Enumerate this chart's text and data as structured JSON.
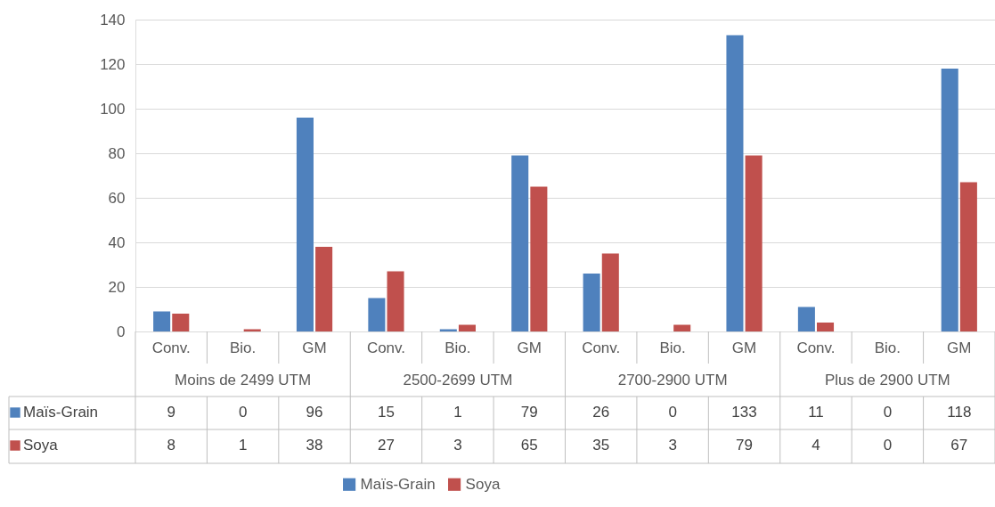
{
  "chart_data": {
    "type": "bar",
    "categories": [
      "Conv.",
      "Bio.",
      "GM",
      "Conv.",
      "Bio.",
      "GM",
      "Conv.",
      "Bio.",
      "GM",
      "Conv.",
      "Bio.",
      "GM"
    ],
    "annotations": [
      "Moins de 2499 UTM",
      "2500-2699 UTM",
      "2700-2900 UTM",
      "Plus de 2900 UTM"
    ],
    "series": [
      {
        "name": "Maïs-Grain",
        "color": "#4f81bd",
        "values": [
          9,
          0,
          96,
          15,
          1,
          79,
          26,
          0,
          133,
          11,
          0,
          118
        ]
      },
      {
        "name": "Soya",
        "color": "#c0504d",
        "values": [
          8,
          1,
          38,
          27,
          3,
          65,
          35,
          3,
          79,
          4,
          0,
          67
        ]
      }
    ],
    "ylim": [
      0,
      140
    ],
    "yticks": [
      0,
      20,
      40,
      60,
      80,
      100,
      120,
      140
    ],
    "grid": "y",
    "legend": "bottom",
    "data_labels": true
  }
}
